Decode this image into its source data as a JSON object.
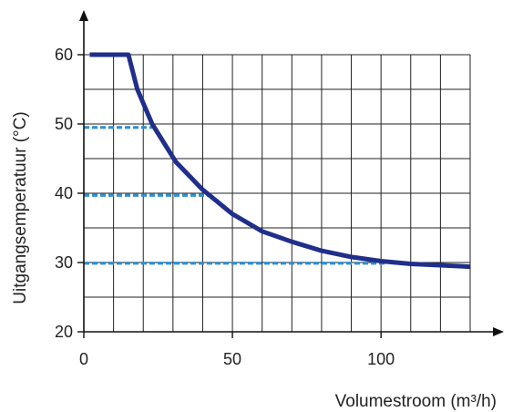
{
  "chart_data": {
    "type": "line",
    "xlabel": "Volumestroom (m³/h)",
    "ylabel": "Uitgangsemperatuur (°C)",
    "xlim": [
      0,
      130
    ],
    "ylim": [
      20,
      60
    ],
    "x_ticks": [
      0,
      50,
      100
    ],
    "y_ticks": [
      20,
      30,
      40,
      50,
      60
    ],
    "x_grid_step": 10,
    "y_grid_step": 5,
    "grid": true,
    "series": [
      {
        "color": "#1f2f8a",
        "points": [
          [
            2,
            60
          ],
          [
            15,
            60
          ],
          [
            18,
            55
          ],
          [
            23,
            50
          ],
          [
            31,
            44.5
          ],
          [
            40,
            40.5
          ],
          [
            50,
            37
          ],
          [
            60,
            34.5
          ],
          [
            70,
            33
          ],
          [
            80,
            31.7
          ],
          [
            90,
            30.8
          ],
          [
            100,
            30.2
          ],
          [
            110,
            29.8
          ],
          [
            120,
            29.6
          ],
          [
            130,
            29.4
          ]
        ]
      }
    ],
    "reference_lines": [
      {
        "y": 49.5,
        "x_end": 23,
        "color": "#2f8fd0"
      },
      {
        "y": 39.7,
        "x_end": 42,
        "color": "#2f8fd0"
      },
      {
        "y": 29.9,
        "x_end": 102,
        "color": "#2f8fd0"
      }
    ]
  }
}
